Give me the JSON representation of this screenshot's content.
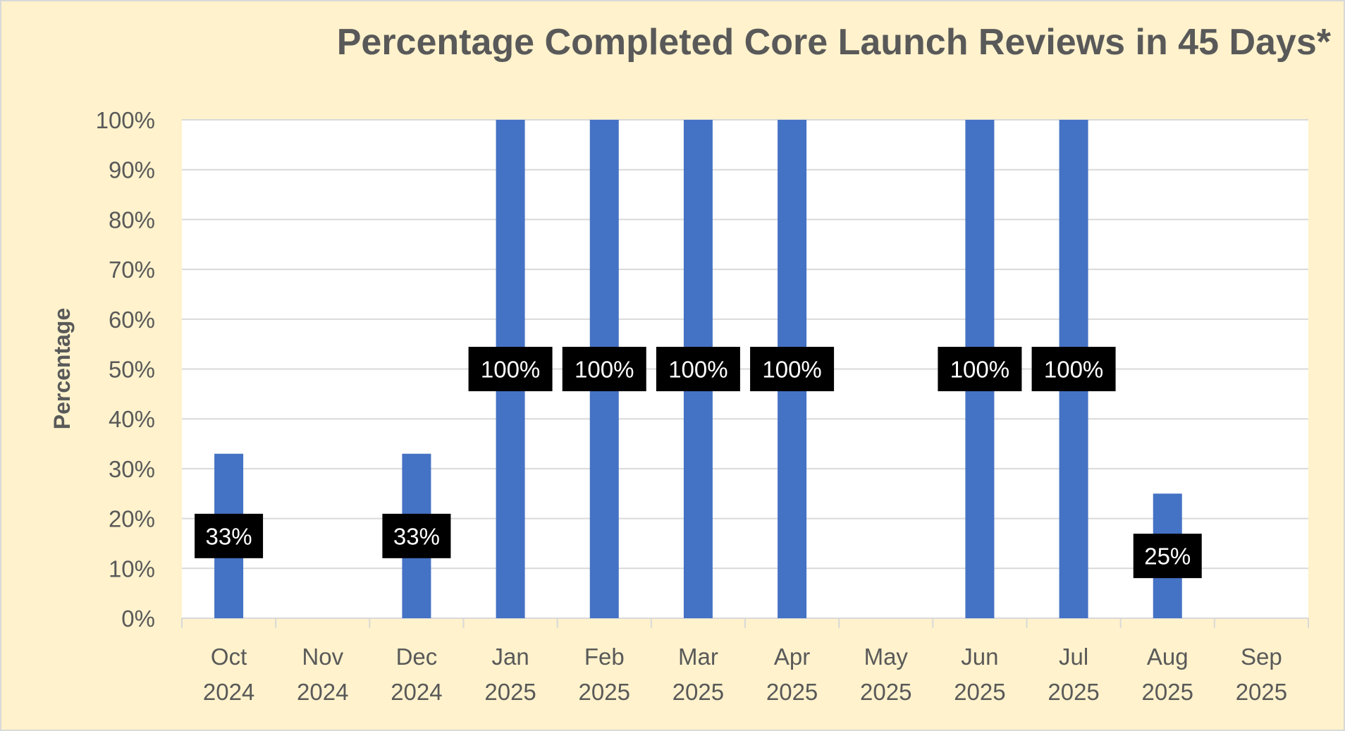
{
  "chart_data": {
    "type": "bar",
    "title": "Percentage Completed Core Launch Reviews in 45 Days*",
    "xlabel": "",
    "ylabel": "Percentage",
    "categories": [
      [
        "Oct",
        "2024"
      ],
      [
        "Nov",
        "2024"
      ],
      [
        "Dec",
        "2024"
      ],
      [
        "Jan",
        "2025"
      ],
      [
        "Feb",
        "2025"
      ],
      [
        "Mar",
        "2025"
      ],
      [
        "Apr",
        "2025"
      ],
      [
        "May",
        "2025"
      ],
      [
        "Jun",
        "2025"
      ],
      [
        "Jul",
        "2025"
      ],
      [
        "Aug",
        "2025"
      ],
      [
        "Sep",
        "2025"
      ]
    ],
    "values": [
      33,
      null,
      33,
      100,
      100,
      100,
      100,
      null,
      100,
      100,
      25,
      null
    ],
    "data_labels": [
      "33%",
      "",
      "33%",
      "100%",
      "100%",
      "100%",
      "100%",
      "",
      "100%",
      "100%",
      "25%",
      ""
    ],
    "ylim": [
      0,
      100
    ],
    "yticks": [
      "0%",
      "10%",
      "20%",
      "30%",
      "40%",
      "50%",
      "60%",
      "70%",
      "80%",
      "90%",
      "100%"
    ],
    "grid": true,
    "legend": "none",
    "colors": {
      "bar": "#4472c4",
      "background": "#fff2cc",
      "plot_area": "#ffffff",
      "label_box": "#000000",
      "gridline": "#d9d9d9",
      "text": "#595959"
    }
  }
}
